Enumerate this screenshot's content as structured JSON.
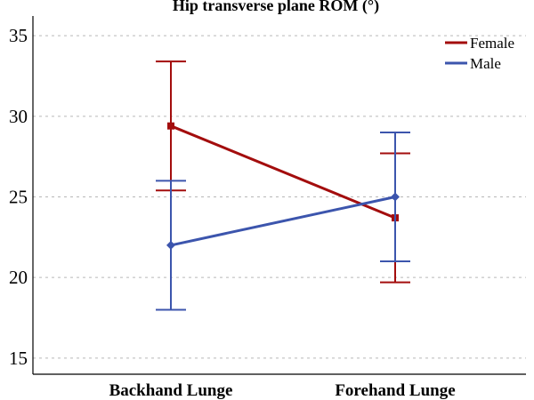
{
  "chart_data": {
    "type": "line",
    "title": "Hip transverse plane ROM (°)",
    "xlabel": "",
    "ylabel": "",
    "categories": [
      "Backhand Lunge",
      "Forehand Lunge"
    ],
    "ylim": [
      14,
      36
    ],
    "yticks": [
      15,
      20,
      25,
      30,
      35
    ],
    "grid": true,
    "legend_position": "top-right",
    "series": [
      {
        "name": "Female",
        "color": "#a30d0d",
        "marker": "square",
        "values": [
          29.4,
          23.7
        ],
        "error_low": [
          25.4,
          19.7
        ],
        "error_high": [
          33.4,
          27.7
        ]
      },
      {
        "name": "Male",
        "color": "#3c55ad",
        "marker": "diamond",
        "values": [
          22.0,
          25.0
        ],
        "error_low": [
          18.0,
          21.0
        ],
        "error_high": [
          26.0,
          29.0
        ]
      }
    ]
  }
}
